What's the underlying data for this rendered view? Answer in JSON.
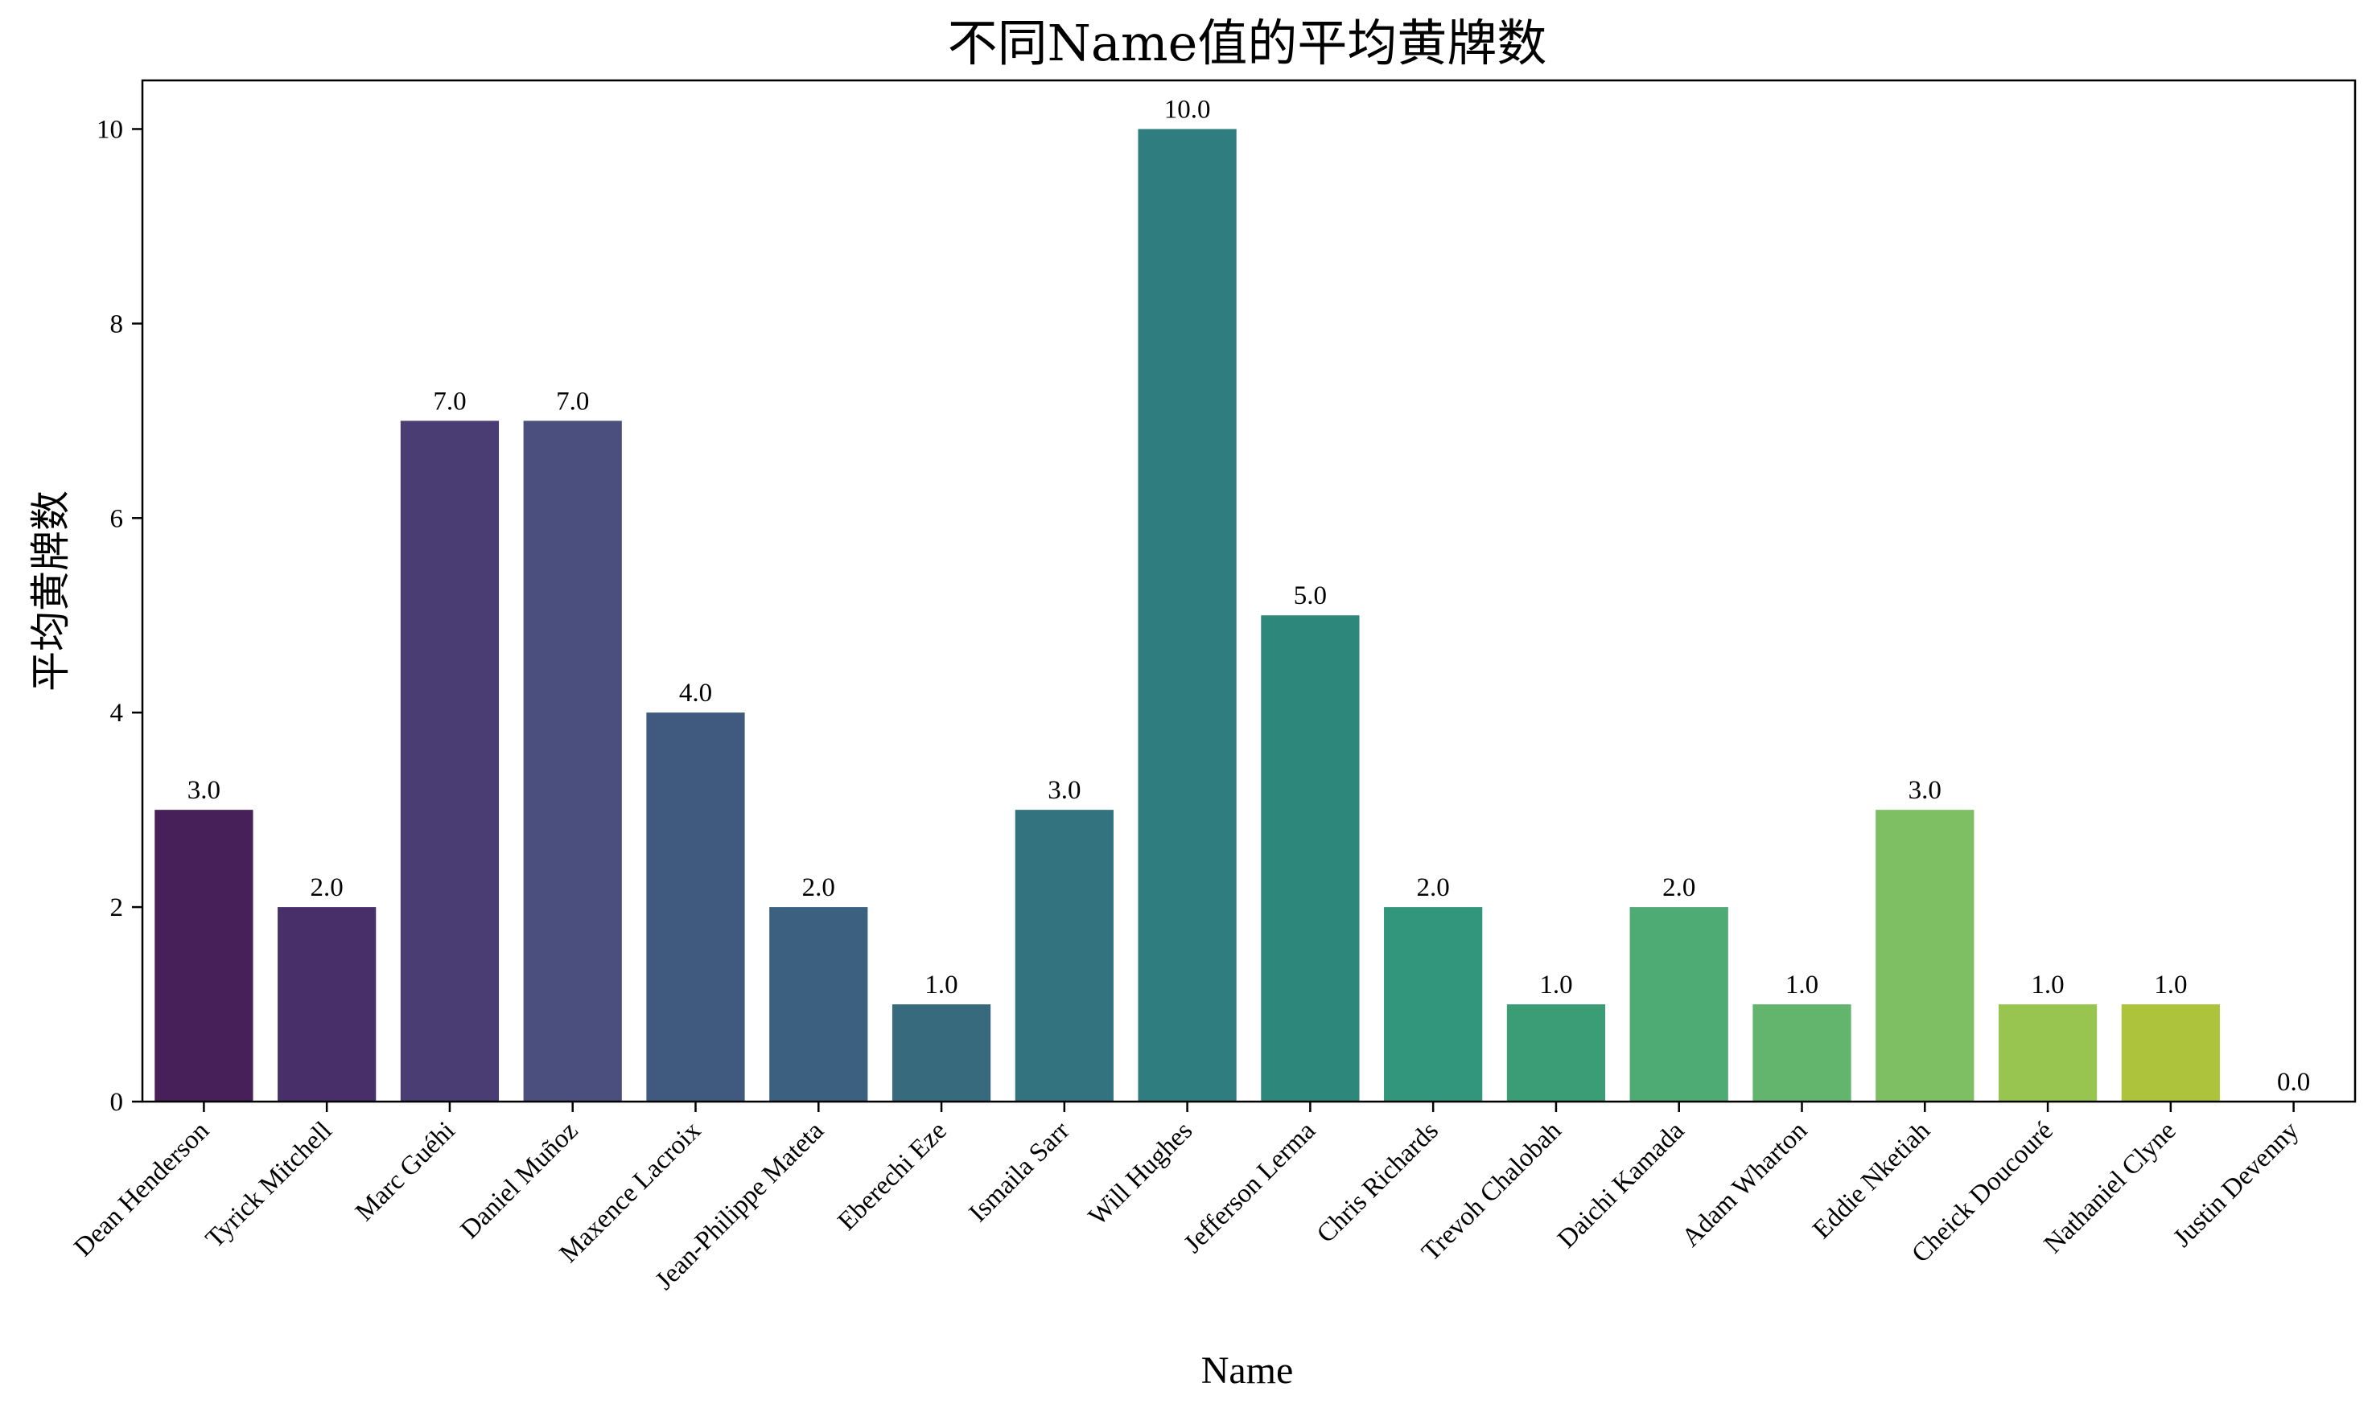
{
  "chart_data": {
    "type": "bar",
    "title": "不同Name值的平均黄牌数",
    "xlabel": "Name",
    "ylabel": "平均黄牌数",
    "ylim": [
      0,
      10.5
    ],
    "yticks": [
      0,
      2,
      4,
      6,
      8,
      10
    ],
    "grid": false,
    "legend": "none",
    "categories": [
      "Dean Henderson",
      "Tyrick Mitchell",
      "Marc Guéhi",
      "Daniel Muñoz",
      "Maxence Lacroix",
      "Jean-Philippe Mateta",
      "Eberechi Eze",
      "Ismaila Sarr",
      "Will Hughes",
      "Jefferson Lerma",
      "Chris Richards",
      "Trevoh Chalobah",
      "Daichi Kamada",
      "Adam Wharton",
      "Eddie Nketiah",
      "Cheick Doucouré",
      "Nathaniel Clyne",
      "Justin Devenny"
    ],
    "values": [
      3.0,
      2.0,
      7.0,
      7.0,
      4.0,
      2.0,
      1.0,
      3.0,
      10.0,
      5.0,
      2.0,
      1.0,
      2.0,
      1.0,
      3.0,
      1.0,
      1.0,
      0.0
    ],
    "value_labels": [
      "3.0",
      "2.0",
      "7.0",
      "7.0",
      "4.0",
      "2.0",
      "1.0",
      "3.0",
      "10.0",
      "5.0",
      "2.0",
      "1.0",
      "2.0",
      "1.0",
      "3.0",
      "1.0",
      "1.0",
      "0.0"
    ],
    "colors": [
      "#471f59",
      "#482f6a",
      "#493d73",
      "#4a4f7e",
      "#405a7f",
      "#3b6080",
      "#376a7d",
      "#337380",
      "#2f7d7e",
      "#2e877b",
      "#31967c",
      "#3a9d76",
      "#4eab74",
      "#63b56d",
      "#7dbf62",
      "#97c54f",
      "#adc33c",
      "#b8c82e"
    ]
  }
}
